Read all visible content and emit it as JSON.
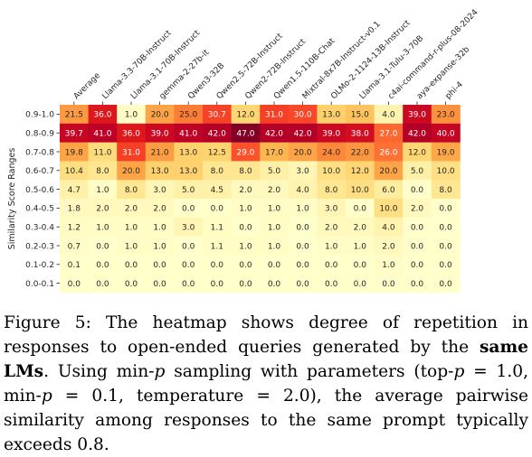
{
  "chart_data": {
    "type": "heatmap",
    "ylabel": "Similarity Score Ranges",
    "xlabel": "",
    "columns": [
      "Average",
      "Llama-3.3-70B-Instruct",
      "Llama-3.1-70B-Instruct",
      "gemma-2-27b-it",
      "Qwen3-32B",
      "Qwen2.5-72B-Instruct",
      "Qwen2-72B-Instruct",
      "Qwen1.5-110B-Chat",
      "Mixtral-8x7B-Instruct-v0.1",
      "OLMo-2-1124-13B-Instruct",
      "Llama-3.1-Tulu-3-70B",
      "c4ai-command-r-plus-08-2024",
      "aya-expanse-32b",
      "phi-4"
    ],
    "rows": [
      "0.9-1.0",
      "0.8-0.9",
      "0.7-0.8",
      "0.6-0.7",
      "0.5-0.6",
      "0.4-0.5",
      "0.3-0.4",
      "0.2-0.3",
      "0.1-0.2",
      "0.0-0.1"
    ],
    "values": [
      [
        "21.5",
        "36.0",
        "1.0",
        "20.0",
        "25.0",
        "30.7",
        "12.0",
        "31.0",
        "30.0",
        "13.0",
        "15.0",
        "4.0",
        "39.0",
        "23.0"
      ],
      [
        "39.7",
        "41.0",
        "36.0",
        "39.0",
        "41.0",
        "42.0",
        "47.0",
        "42.0",
        "42.0",
        "39.0",
        "38.0",
        "27.0",
        "42.0",
        "40.0"
      ],
      [
        "19.8",
        "11.0",
        "31.0",
        "21.0",
        "13.0",
        "12.5",
        "29.0",
        "17.0",
        "20.0",
        "24.0",
        "22.0",
        "26.0",
        "12.0",
        "19.0"
      ],
      [
        "10.4",
        "8.0",
        "20.0",
        "13.0",
        "13.0",
        "8.0",
        "8.0",
        "5.0",
        "3.0",
        "10.0",
        "12.0",
        "20.0",
        "5.0",
        "10.0"
      ],
      [
        "4.7",
        "1.0",
        "8.0",
        "3.0",
        "5.0",
        "4.5",
        "2.0",
        "2.0",
        "4.0",
        "8.0",
        "10.0",
        "6.0",
        "0.0",
        "8.0"
      ],
      [
        "1.8",
        "2.0",
        "2.0",
        "2.0",
        "0.0",
        "0.0",
        "1.0",
        "1.0",
        "1.0",
        "3.0",
        "0.0",
        "10.0",
        "2.0",
        "0.0"
      ],
      [
        "1.2",
        "1.0",
        "1.0",
        "1.0",
        "3.0",
        "1.1",
        "0.0",
        "1.0",
        "0.0",
        "2.0",
        "2.0",
        "4.0",
        "0.0",
        "0.0"
      ],
      [
        "0.7",
        "0.0",
        "1.0",
        "1.0",
        "0.0",
        "1.1",
        "1.0",
        "1.0",
        "0.0",
        "1.0",
        "1.0",
        "2.0",
        "0.0",
        "0.0"
      ],
      [
        "0.1",
        "0.0",
        "0.0",
        "0.0",
        "0.0",
        "0.0",
        "0.0",
        "0.0",
        "0.0",
        "0.0",
        "0.0",
        "1.0",
        "0.0",
        "0.0"
      ],
      [
        "0.0",
        "0.0",
        "0.0",
        "0.0",
        "0.0",
        "0.0",
        "0.0",
        "0.0",
        "0.0",
        "0.0",
        "0.0",
        "0.0",
        "0.0",
        "0.0"
      ]
    ],
    "colormap": "YlOrRd",
    "vmin": 0,
    "vmax": 47,
    "text_color_dark": "#262626",
    "text_color_light": "#ffffff"
  },
  "caption": {
    "p1": "Figure 5: The heatmap shows degree of repetition in responses to open-ended queries generated by the ",
    "bold": "same LMs",
    "p2": ". Using min-",
    "p_sym1": "p",
    "p3": " sampling with parameters (top-",
    "p_sym2": "p",
    "p4": " = 1.0, min-",
    "p_sym3": "p",
    "p5": " = 0.1, temperature = 2.0), the average pairwise similarity among responses to the same prompt typically exceeds 0.8."
  }
}
